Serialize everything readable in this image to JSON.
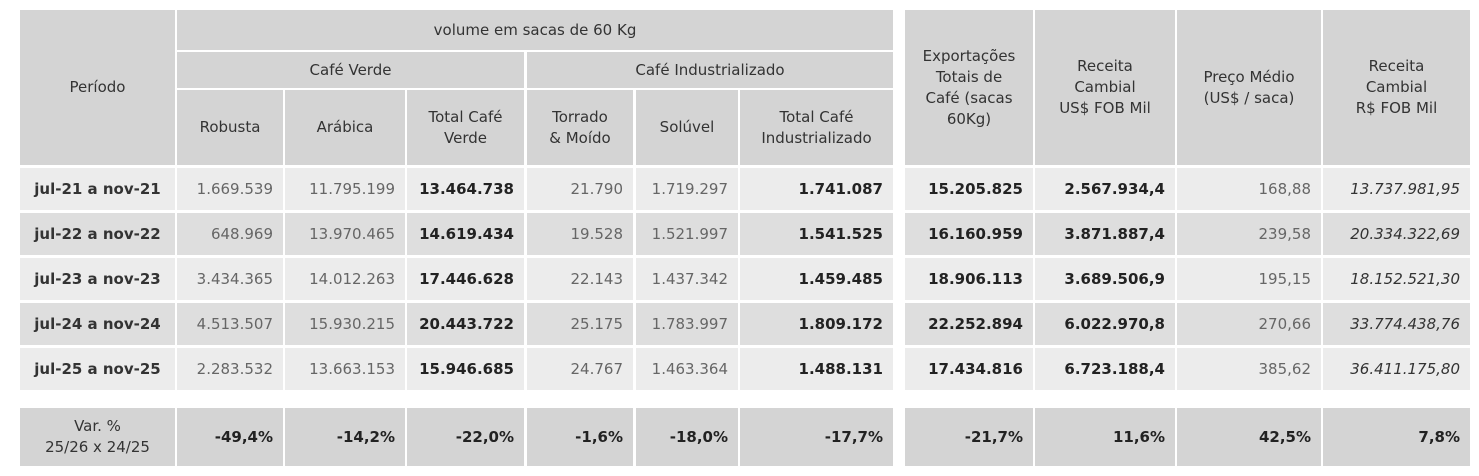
{
  "header": {
    "periodo": [
      "Período"
    ],
    "volume": [
      "volume em sacas de 60 Kg"
    ],
    "cafe_verde": [
      "Café Verde"
    ],
    "cafe_industrializado": [
      "Café Industrializado"
    ],
    "columns": [
      [
        "Robusta"
      ],
      [
        "Arábica"
      ],
      [
        "Total Café",
        "Verde"
      ],
      [
        "Torrado",
        "& Moído"
      ],
      [
        "Solúvel"
      ],
      [
        "Total Café",
        "Industrializado"
      ],
      [
        "Exportações",
        "Totais de",
        "Café (sacas",
        "60Kg)"
      ],
      [
        "Receita",
        "Cambial",
        "US$ FOB Mil"
      ],
      [
        "Preço Médio",
        "(US$ / saca)"
      ],
      [
        "Receita",
        "Cambial",
        "R$ FOB Mil"
      ]
    ]
  },
  "rows": [
    {
      "period": "jul-21 a nov-21",
      "values": [
        "1.669.539",
        "11.795.199",
        "13.464.738",
        "21.790",
        "1.719.297",
        "1.741.087",
        "15.205.825",
        "2.567.934,4",
        "168,88",
        "13.737.981,95"
      ]
    },
    {
      "period": "jul-22 a nov-22",
      "values": [
        "648.969",
        "13.970.465",
        "14.619.434",
        "19.528",
        "1.521.997",
        "1.541.525",
        "16.160.959",
        "3.871.887,4",
        "239,58",
        "20.334.322,69"
      ]
    },
    {
      "period": "jul-23 a nov-23",
      "values": [
        "3.434.365",
        "14.012.263",
        "17.446.628",
        "22.143",
        "1.437.342",
        "1.459.485",
        "18.906.113",
        "3.689.506,9",
        "195,15",
        "18.152.521,30"
      ]
    },
    {
      "period": "jul-24 a nov-24",
      "values": [
        "4.513.507",
        "15.930.215",
        "20.443.722",
        "25.175",
        "1.783.997",
        "1.809.172",
        "22.252.894",
        "6.022.970,8",
        "270,66",
        "33.774.438,76"
      ]
    },
    {
      "period": "jul-25 a nov-25",
      "values": [
        "2.283.532",
        "13.663.153",
        "15.946.685",
        "24.767",
        "1.463.364",
        "1.488.131",
        "17.434.816",
        "6.723.188,4",
        "385,62",
        "36.411.175,80"
      ]
    }
  ],
  "variation": {
    "label": [
      "Var. %",
      "25/26 x 24/25"
    ],
    "values": [
      "-49,4%",
      "-14,2%",
      "-22,0%",
      "-1,6%",
      "-18,0%",
      "-17,7%",
      "-21,7%",
      "11,6%",
      "42,5%",
      "7,8%"
    ]
  }
}
